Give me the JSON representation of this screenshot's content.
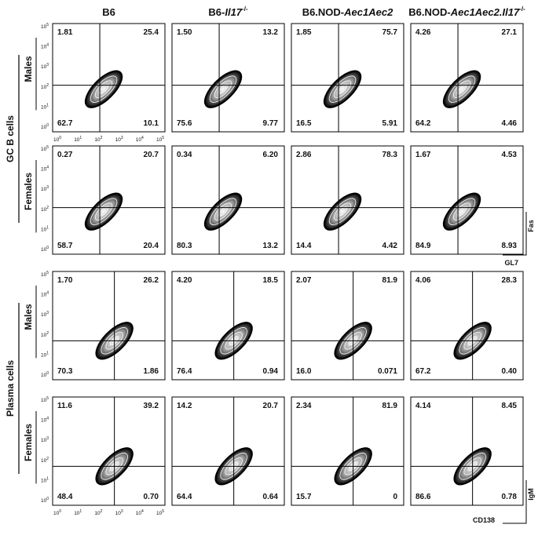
{
  "columns": [
    [
      {
        "text": "B6",
        "style": "normal"
      }
    ],
    [
      {
        "text": "B6-",
        "style": "normal"
      },
      {
        "text": "Il17",
        "style": "italic"
      },
      {
        "text": "-/-",
        "style": "sup"
      }
    ],
    [
      {
        "text": "B6.NOD-",
        "style": "normal"
      },
      {
        "text": "Aec1Aec2",
        "style": "italic"
      }
    ],
    [
      {
        "text": "B6.NOD-",
        "style": "normal"
      },
      {
        "text": "Aec1Aec2.Il17",
        "style": "italic"
      },
      {
        "text": "-/-",
        "style": "sup"
      }
    ]
  ],
  "tick_base": "10",
  "tick_exponents": [
    "0",
    "1",
    "2",
    "3",
    "4",
    "5"
  ],
  "groups": [
    {
      "label": "GC B cells",
      "x_axis": "GL7",
      "y_axis": "Fas",
      "rows": [
        {
          "label": "Males",
          "panels": [
            [
              "1.81",
              "25.4",
              "62.7",
              "10.1"
            ],
            [
              "1.50",
              "13.2",
              "75.6",
              "9.77"
            ],
            [
              "1.85",
              "75.7",
              "16.5",
              "5.91"
            ],
            [
              "4.26",
              "27.1",
              "64.2",
              "4.46"
            ]
          ]
        },
        {
          "label": "Females",
          "panels": [
            [
              "0.27",
              "20.7",
              "58.7",
              "20.4"
            ],
            [
              "0.34",
              "6.20",
              "80.3",
              "13.2"
            ],
            [
              "2.86",
              "78.3",
              "14.4",
              "4.42"
            ],
            [
              "1.67",
              "4.53",
              "84.9",
              "8.93"
            ]
          ]
        }
      ]
    },
    {
      "label": "Plasma cells",
      "x_axis": "CD138",
      "y_axis": "IgM",
      "rows": [
        {
          "label": "Males",
          "panels": [
            [
              "1.70",
              "26.2",
              "70.3",
              "1.86"
            ],
            [
              "4.20",
              "18.5",
              "76.4",
              "0.94"
            ],
            [
              "2.07",
              "81.9",
              "16.0",
              "0.071"
            ],
            [
              "4.06",
              "28.3",
              "67.2",
              "0.40"
            ]
          ]
        },
        {
          "label": "Females",
          "panels": [
            [
              "11.6",
              "39.2",
              "48.4",
              "0.70"
            ],
            [
              "14.2",
              "20.7",
              "64.4",
              "0.64"
            ],
            [
              "2.34",
              "81.9",
              "15.7",
              "0"
            ],
            [
              "4.14",
              "8.45",
              "86.6",
              "0.78"
            ]
          ]
        }
      ]
    }
  ]
}
